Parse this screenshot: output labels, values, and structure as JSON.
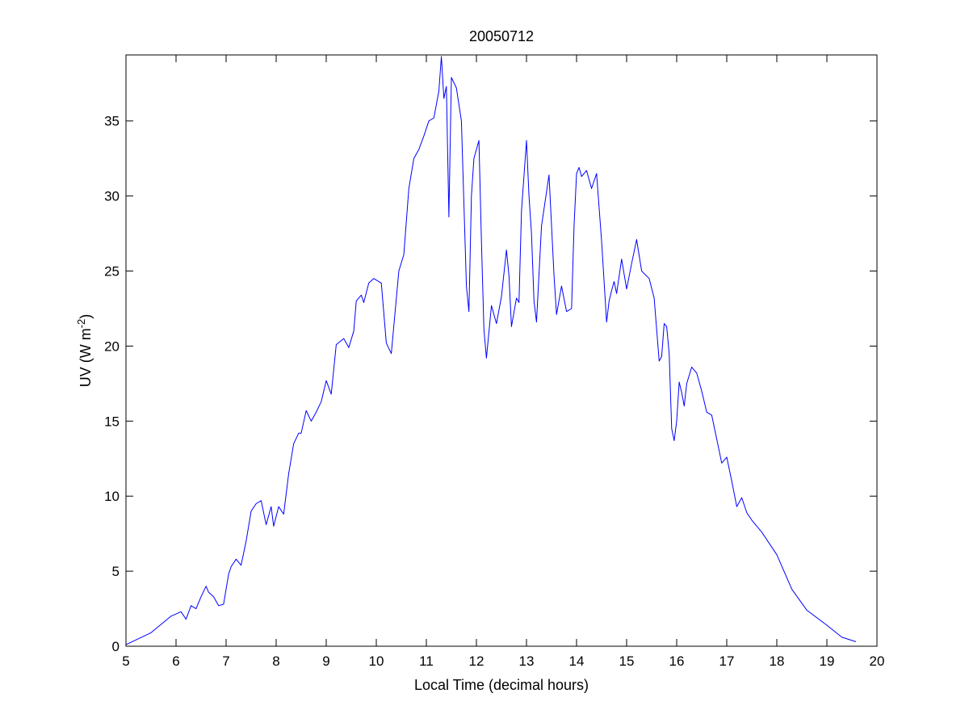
{
  "chart_data": {
    "type": "line",
    "title": "20050712",
    "xlabel": "Local Time (decimal hours)",
    "ylabel": {
      "prefix": "UV (W m",
      "superscript": "-2",
      "suffix": ")"
    },
    "xlim": [
      5,
      20
    ],
    "ylim": [
      0,
      39.4
    ],
    "xticks": [
      5,
      6,
      7,
      8,
      9,
      10,
      11,
      12,
      13,
      14,
      15,
      16,
      17,
      18,
      19,
      20
    ],
    "yticks": [
      0,
      5,
      10,
      15,
      20,
      25,
      30,
      35
    ],
    "grid": false,
    "line_color": "#0000ff",
    "series": [
      {
        "x": [
          5.0,
          5.5,
          5.9,
          6.1,
          6.2,
          6.3,
          6.4,
          6.5,
          6.6,
          6.65,
          6.75,
          6.85,
          6.95,
          7.05,
          7.1,
          7.2,
          7.3,
          7.4,
          7.5,
          7.6,
          7.7,
          7.8,
          7.9,
          7.95,
          8.05,
          8.15,
          8.25,
          8.35,
          8.45,
          8.5,
          8.6,
          8.7,
          8.8,
          8.9,
          9.0,
          9.1,
          9.2,
          9.35,
          9.45,
          9.55,
          9.6,
          9.7,
          9.75,
          9.85,
          9.95,
          10.1,
          10.2,
          10.3,
          10.45,
          10.55,
          10.65,
          10.75,
          10.85,
          10.95,
          11.05,
          11.15,
          11.25,
          11.3,
          11.35,
          11.4,
          11.45,
          11.5,
          11.6,
          11.7,
          11.8,
          11.85,
          11.9,
          11.95,
          12.05,
          12.1,
          12.15,
          12.2,
          12.3,
          12.4,
          12.5,
          12.6,
          12.65,
          12.7,
          12.8,
          12.85,
          12.9,
          13.0,
          13.05,
          13.1,
          13.15,
          13.2,
          13.3,
          13.45,
          13.55,
          13.6,
          13.7,
          13.8,
          13.85,
          13.9,
          13.95,
          14.0,
          14.05,
          14.1,
          14.2,
          14.3,
          14.4,
          14.5,
          14.6,
          14.65,
          14.7,
          14.75,
          14.8,
          14.9,
          15.0,
          15.1,
          15.2,
          15.3,
          15.45,
          15.55,
          15.65,
          15.7,
          15.75,
          15.8,
          15.85,
          15.9,
          15.95,
          16.0,
          16.05,
          16.1,
          16.15,
          16.2,
          16.3,
          16.4,
          16.5,
          16.6,
          16.7,
          16.8,
          16.9,
          17.0,
          17.1,
          17.2,
          17.3,
          17.4,
          17.5,
          17.7,
          18.0,
          18.3,
          18.6,
          19.0,
          19.3,
          19.58
        ],
        "y": [
          0.1,
          0.9,
          2.0,
          2.3,
          1.8,
          2.7,
          2.5,
          3.3,
          4.0,
          3.6,
          3.3,
          2.7,
          2.8,
          4.8,
          5.3,
          5.8,
          5.4,
          7.0,
          9.0,
          9.5,
          9.7,
          8.1,
          9.3,
          8.0,
          9.3,
          8.8,
          11.5,
          13.5,
          14.2,
          14.2,
          15.7,
          15.0,
          15.6,
          16.3,
          17.7,
          16.8,
          20.1,
          20.5,
          19.9,
          21.0,
          23.0,
          23.4,
          22.9,
          24.2,
          24.5,
          24.2,
          20.2,
          19.5,
          25.0,
          26.1,
          30.5,
          32.5,
          33.1,
          34.0,
          35.0,
          35.2,
          37.0,
          39.3,
          36.5,
          37.3,
          28.6,
          37.9,
          37.2,
          35.0,
          24.0,
          22.3,
          30.0,
          32.5,
          33.7,
          27.0,
          21.1,
          19.2,
          22.7,
          21.5,
          23.3,
          26.4,
          24.7,
          21.3,
          23.2,
          22.9,
          29.0,
          33.7,
          30.0,
          27.5,
          23.0,
          21.6,
          28.0,
          31.4,
          24.7,
          22.1,
          24.0,
          22.3,
          22.4,
          22.5,
          28.0,
          31.5,
          31.9,
          31.3,
          31.7,
          30.5,
          31.5,
          27.0,
          21.6,
          23.0,
          23.7,
          24.3,
          23.5,
          25.8,
          23.8,
          25.5,
          27.1,
          25.0,
          24.5,
          23.2,
          19.0,
          19.3,
          21.5,
          21.3,
          19.5,
          14.5,
          13.7,
          15.0,
          17.6,
          16.9,
          16.0,
          17.5,
          18.6,
          18.2,
          17.0,
          15.6,
          15.4,
          13.8,
          12.2,
          12.6,
          11.0,
          9.3,
          9.9,
          8.9,
          8.4,
          7.6,
          6.1,
          3.8,
          2.4,
          1.4,
          0.6,
          0.3
        ]
      }
    ]
  }
}
